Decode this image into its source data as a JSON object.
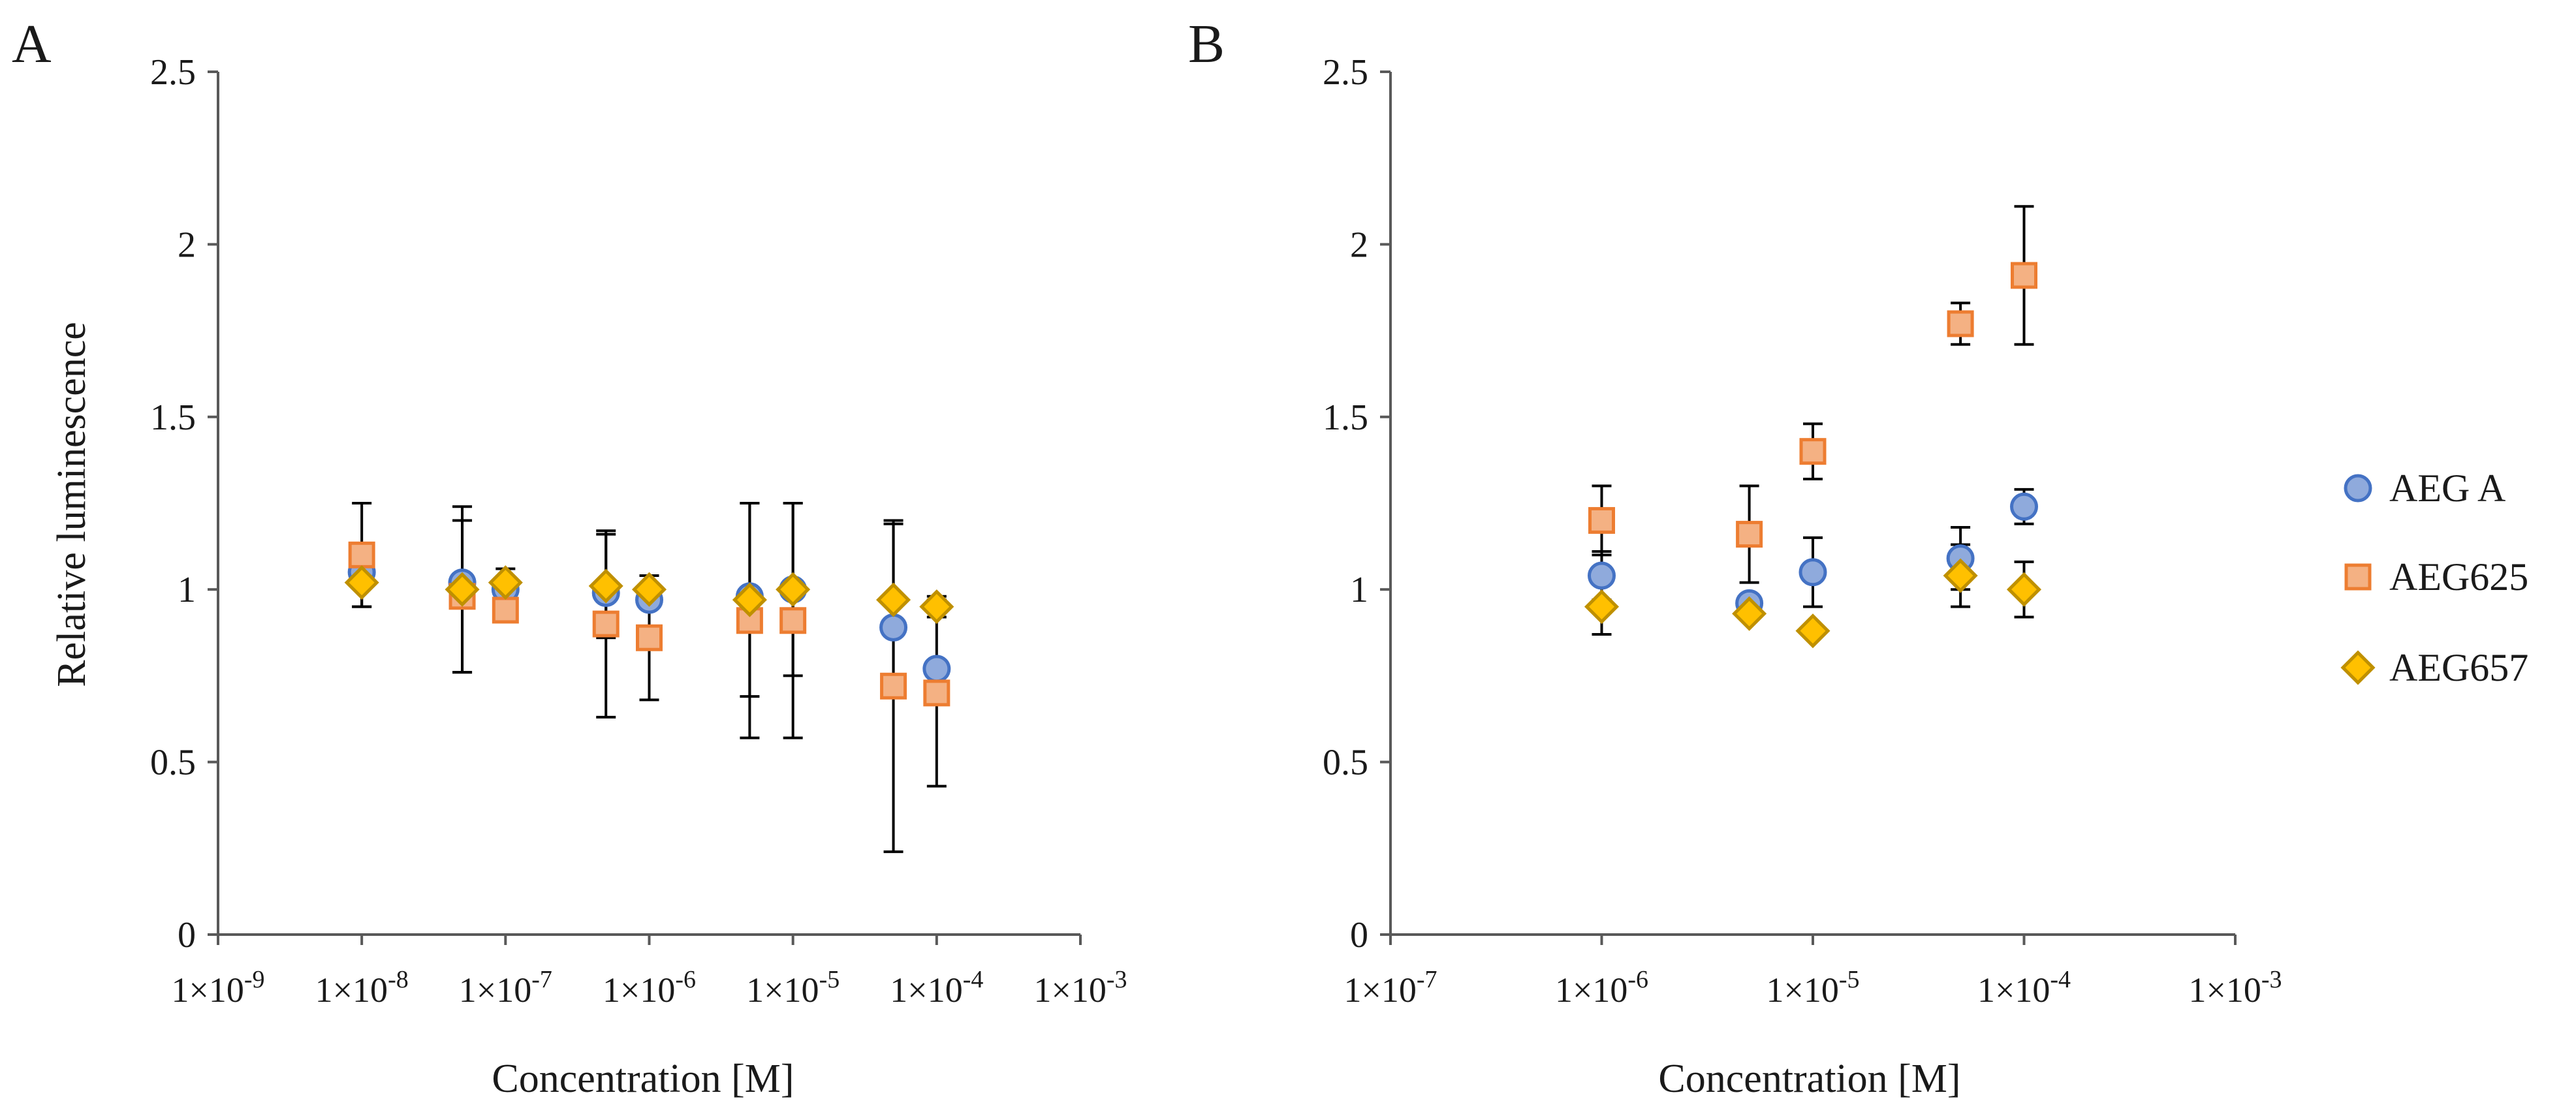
{
  "chart_data": [
    {
      "panel_label": "A",
      "type": "scatter",
      "xlabel": "Concentration [M]",
      "ylabel": "Relative luminescence",
      "x_scale": "log",
      "xlim": [
        1e-09,
        0.001
      ],
      "ylim": [
        0,
        2.5
      ],
      "x_ticks": [
        1e-09,
        1e-08,
        1e-07,
        1e-06,
        1e-05,
        0.0001,
        0.001
      ],
      "x_tick_exponents": [
        "-9",
        "-8",
        "-7",
        "-6",
        "-5",
        "-4",
        "-3"
      ],
      "y_ticks": [
        0,
        0.5,
        1,
        1.5,
        2,
        2.5
      ],
      "y_tick_labels": [
        "0",
        "0.5",
        "1",
        "1.5",
        "2",
        "2.5"
      ],
      "grid": false,
      "legend": "none",
      "series": [
        {
          "name": "AEG A",
          "marker": "circle",
          "color": "#8FAADC",
          "edge": "#4472C4",
          "points": [
            {
              "x": 1e-08,
              "y": 1.05,
              "err": 0
            },
            {
              "x": 5e-08,
              "y": 1.02,
              "err": 0
            },
            {
              "x": 1e-07,
              "y": 1.0,
              "err": 0
            },
            {
              "x": 5e-07,
              "y": 0.99,
              "err": 0
            },
            {
              "x": 1e-06,
              "y": 0.97,
              "err": 0
            },
            {
              "x": 5e-06,
              "y": 0.98,
              "err": 0
            },
            {
              "x": 1e-05,
              "y": 1.0,
              "err": 0
            },
            {
              "x": 5e-05,
              "y": 0.89,
              "err": 0
            },
            {
              "x": 0.0001,
              "y": 0.77,
              "err": 0
            }
          ]
        },
        {
          "name": "AEG625",
          "marker": "square",
          "color": "#F4B183",
          "edge": "#ED7D31",
          "points": [
            {
              "x": 1e-08,
              "y": 1.1,
              "err": 0.15
            },
            {
              "x": 5e-08,
              "y": 0.98,
              "err": 0.22
            },
            {
              "x": 1e-07,
              "y": 0.94,
              "err": 0
            },
            {
              "x": 5e-07,
              "y": 0.9,
              "err": 0.27
            },
            {
              "x": 1e-06,
              "y": 0.86,
              "err": 0.18
            },
            {
              "x": 5e-06,
              "y": 0.91,
              "err": 0.34
            },
            {
              "x": 1e-05,
              "y": 0.91,
              "err": 0.34
            },
            {
              "x": 5e-05,
              "y": 0.72,
              "err": 0.48
            },
            {
              "x": 0.0001,
              "y": 0.7,
              "err": 0.27
            }
          ]
        },
        {
          "name": "AEG657",
          "marker": "diamond",
          "color": "#FFC000",
          "edge": "#BF9000",
          "points": [
            {
              "x": 1e-08,
              "y": 1.02,
              "err": 0.07
            },
            {
              "x": 5e-08,
              "y": 1.0,
              "err": 0.24
            },
            {
              "x": 1e-07,
              "y": 1.02,
              "err": 0.04
            },
            {
              "x": 5e-07,
              "y": 1.01,
              "err": 0.15
            },
            {
              "x": 1e-06,
              "y": 1.0,
              "err": 0.04
            },
            {
              "x": 5e-06,
              "y": 0.97,
              "err": 0.28
            },
            {
              "x": 1e-05,
              "y": 1.0,
              "err": 0.25
            },
            {
              "x": 5e-05,
              "y": 0.97,
              "err": 0.22
            },
            {
              "x": 0.0001,
              "y": 0.95,
              "err": 0.03
            }
          ]
        }
      ]
    },
    {
      "panel_label": "B",
      "type": "scatter",
      "xlabel": "Concentration [M]",
      "ylabel": "",
      "x_scale": "log",
      "xlim": [
        1e-07,
        0.001
      ],
      "ylim": [
        0,
        2.5
      ],
      "x_ticks": [
        1e-07,
        1e-06,
        1e-05,
        0.0001,
        0.001
      ],
      "x_tick_exponents": [
        "-7",
        "-6",
        "-5",
        "-4",
        "-3"
      ],
      "y_ticks": [
        0,
        0.5,
        1,
        1.5,
        2,
        2.5
      ],
      "y_tick_labels": [
        "0",
        "0.5",
        "1",
        "1.5",
        "2",
        "2.5"
      ],
      "grid": false,
      "legend": "right",
      "series": [
        {
          "name": "AEG A",
          "marker": "circle",
          "color": "#8FAADC",
          "edge": "#4472C4",
          "points": [
            {
              "x": 1e-06,
              "y": 1.04,
              "err": 0.07
            },
            {
              "x": 5e-06,
              "y": 0.96,
              "err": 0
            },
            {
              "x": 1e-05,
              "y": 1.05,
              "err": 0.1
            },
            {
              "x": 5e-05,
              "y": 1.09,
              "err": 0.09
            },
            {
              "x": 0.0001,
              "y": 1.24,
              "err": 0.05
            }
          ]
        },
        {
          "name": "AEG625",
          "marker": "square",
          "color": "#F4B183",
          "edge": "#ED7D31",
          "points": [
            {
              "x": 1e-06,
              "y": 1.2,
              "err": 0.1
            },
            {
              "x": 5e-06,
              "y": 1.16,
              "err": 0.14
            },
            {
              "x": 1e-05,
              "y": 1.4,
              "err": 0.08
            },
            {
              "x": 5e-05,
              "y": 1.77,
              "err": 0.06
            },
            {
              "x": 0.0001,
              "y": 1.91,
              "err": 0.2
            }
          ]
        },
        {
          "name": "AEG657",
          "marker": "diamond",
          "color": "#FFC000",
          "edge": "#BF9000",
          "points": [
            {
              "x": 1e-06,
              "y": 0.95,
              "err": 0.08
            },
            {
              "x": 5e-06,
              "y": 0.93,
              "err": 0
            },
            {
              "x": 1e-05,
              "y": 0.88,
              "err": 0
            },
            {
              "x": 5e-05,
              "y": 1.04,
              "err": 0.09
            },
            {
              "x": 0.0001,
              "y": 1.0,
              "err": 0.08
            }
          ]
        }
      ]
    }
  ]
}
